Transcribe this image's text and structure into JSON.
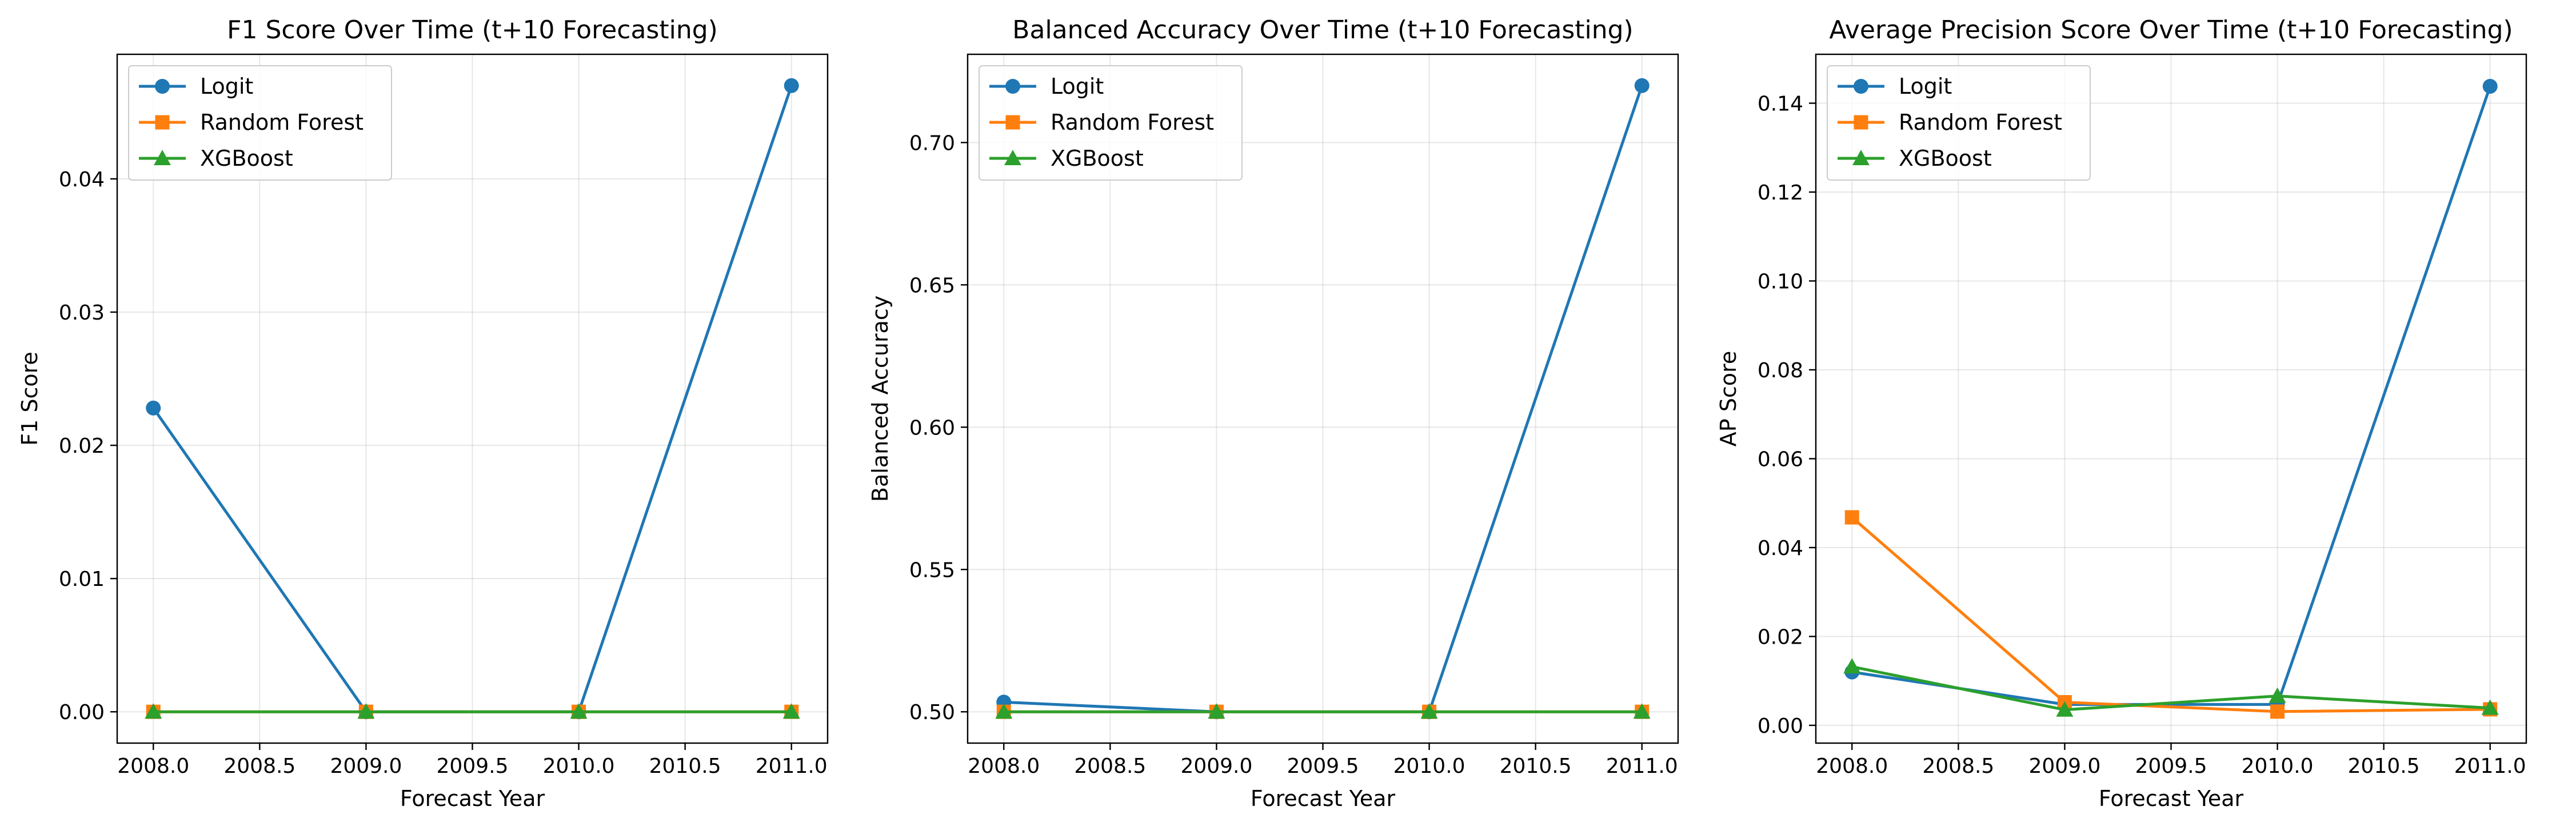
{
  "chart_data": [
    {
      "type": "line",
      "title": "F1 Score Over Time (t+10 Forecasting)",
      "xlabel": "Forecast Year",
      "ylabel": "F1 Score",
      "x": [
        2008,
        2009,
        2010,
        2011
      ],
      "xlim": [
        2007.83,
        2011.17
      ],
      "ylim": [
        -0.00235,
        0.04935
      ],
      "xticks": [
        2008.0,
        2008.5,
        2009.0,
        2009.5,
        2010.0,
        2010.5,
        2011.0
      ],
      "xtick_labels": [
        "2008.0",
        "2008.5",
        "2009.0",
        "2009.5",
        "2010.0",
        "2010.5",
        "2011.0"
      ],
      "yticks": [
        0,
        0.01,
        0.02,
        0.03,
        0.04
      ],
      "ytick_labels": [
        "0.00",
        "0.01",
        "0.02",
        "0.03",
        "0.04"
      ],
      "grid": true,
      "legend": "upper-left",
      "series": [
        {
          "name": "Logit",
          "values": [
            0.0228,
            0.0,
            0.0,
            0.047
          ],
          "color": "#1f77b4",
          "marker": "circle"
        },
        {
          "name": "Random Forest",
          "values": [
            0.0,
            0.0,
            0.0,
            0.0
          ],
          "color": "#ff7f0e",
          "marker": "square"
        },
        {
          "name": "XGBoost",
          "values": [
            0.0,
            0.0,
            0.0,
            0.0
          ],
          "color": "#2ca02c",
          "marker": "triangle"
        }
      ]
    },
    {
      "type": "line",
      "title": "Balanced Accuracy Over Time (t+10 Forecasting)",
      "xlabel": "Forecast Year",
      "ylabel": "Balanced Accuracy",
      "x": [
        2008,
        2009,
        2010,
        2011
      ],
      "xlim": [
        2007.83,
        2011.17
      ],
      "ylim": [
        0.489,
        0.731
      ],
      "xticks": [
        2008.0,
        2008.5,
        2009.0,
        2009.5,
        2010.0,
        2010.5,
        2011.0
      ],
      "xtick_labels": [
        "2008.0",
        "2008.5",
        "2009.0",
        "2009.5",
        "2010.0",
        "2010.5",
        "2011.0"
      ],
      "yticks": [
        0.5,
        0.55,
        0.6,
        0.65,
        0.7
      ],
      "ytick_labels": [
        "0.50",
        "0.55",
        "0.60",
        "0.65",
        "0.70"
      ],
      "grid": true,
      "legend": "upper-left",
      "series": [
        {
          "name": "Logit",
          "values": [
            0.5034,
            0.5,
            0.5,
            0.72
          ],
          "color": "#1f77b4",
          "marker": "circle"
        },
        {
          "name": "Random Forest",
          "values": [
            0.5,
            0.5,
            0.5,
            0.5
          ],
          "color": "#ff7f0e",
          "marker": "square"
        },
        {
          "name": "XGBoost",
          "values": [
            0.5,
            0.5,
            0.5,
            0.5
          ],
          "color": "#2ca02c",
          "marker": "triangle"
        }
      ]
    },
    {
      "type": "line",
      "title": "Average Precision Score Over Time (t+10 Forecasting)",
      "xlabel": "Forecast Year",
      "ylabel": "AP Score",
      "x": [
        2008,
        2009,
        2010,
        2011
      ],
      "xlim": [
        2007.83,
        2011.17
      ],
      "ylim": [
        -0.004,
        0.151
      ],
      "xticks": [
        2008.0,
        2008.5,
        2009.0,
        2009.5,
        2010.0,
        2010.5,
        2011.0
      ],
      "xtick_labels": [
        "2008.0",
        "2008.5",
        "2009.0",
        "2009.5",
        "2010.0",
        "2010.5",
        "2011.0"
      ],
      "yticks": [
        0,
        0.02,
        0.04,
        0.06,
        0.08,
        0.1,
        0.12,
        0.14
      ],
      "ytick_labels": [
        "0.00",
        "0.02",
        "0.04",
        "0.06",
        "0.08",
        "0.10",
        "0.12",
        "0.14"
      ],
      "grid": true,
      "legend": "upper-left",
      "series": [
        {
          "name": "Logit",
          "values": [
            0.012,
            0.0047,
            0.0047,
            0.1438
          ],
          "color": "#1f77b4",
          "marker": "circle"
        },
        {
          "name": "Random Forest",
          "values": [
            0.0468,
            0.0052,
            0.0031,
            0.0036
          ],
          "color": "#ff7f0e",
          "marker": "square"
        },
        {
          "name": "XGBoost",
          "values": [
            0.0132,
            0.0035,
            0.0066,
            0.0039
          ],
          "color": "#2ca02c",
          "marker": "triangle"
        }
      ]
    }
  ]
}
